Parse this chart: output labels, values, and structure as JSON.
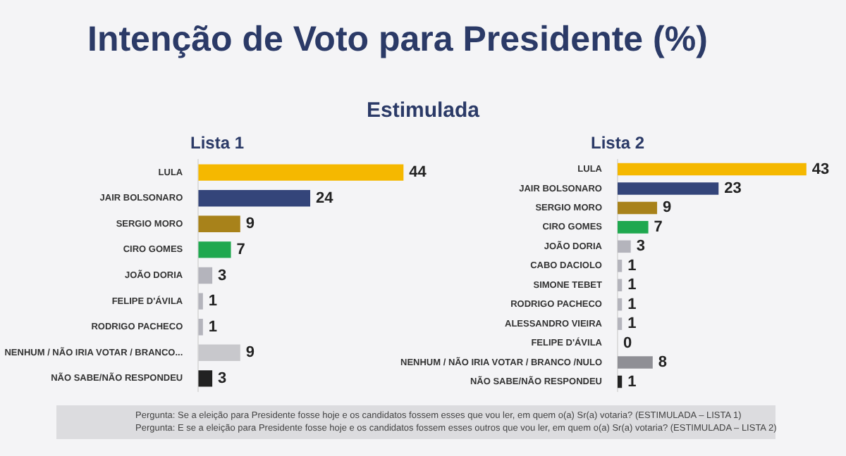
{
  "chart_data": [
    {
      "type": "other",
      "title": "Intenção de Voto para Presidente (%)",
      "subtitle": "Estimulada"
    },
    {
      "type": "bar",
      "orientation": "horizontal",
      "title": "Lista 1",
      "data_labels": true,
      "categories": [
        "LULA",
        "JAIR BOLSONARO",
        "SERGIO MORO",
        "CIRO GOMES",
        "JOÃO DORIA",
        "FELIPE D'ÁVILA",
        "RODRIGO PACHECO",
        "NENHUM / NÃO IRIA VOTAR / BRANCO...",
        "NÃO SABE/NÃO RESPONDEU"
      ],
      "values": [
        44,
        24,
        9,
        7,
        3,
        1,
        1,
        9,
        3
      ],
      "colors": [
        "#f5b800",
        "#34457a",
        "#a8821a",
        "#1fa84f",
        "#b4b4bc",
        "#b4b4bc",
        "#b4b4bc",
        "#c8c8cc",
        "#222222"
      ],
      "annotations": [
        "Pergunta:  Se a eleição para Presidente fosse hoje e os candidatos fossem esses que vou ler, em quem o(a) Sr(a) votaria? (ESTIMULADA – LISTA 1)"
      ]
    },
    {
      "type": "bar",
      "orientation": "horizontal",
      "title": "Lista 2",
      "data_labels": true,
      "categories": [
        "LULA",
        "JAIR BOLSONARO",
        "SERGIO MORO",
        "CIRO GOMES",
        "JOÃO DORIA",
        "CABO DACIOLO",
        "SIMONE TEBET",
        "RODRIGO PACHECO",
        "ALESSANDRO VIEIRA",
        "FELIPE D'ÁVILA",
        "NENHUM / NÃO IRIA VOTAR / BRANCO /NULO",
        "NÃO SABE/NÃO RESPONDEU"
      ],
      "values": [
        43,
        23,
        9,
        7,
        3,
        1,
        1,
        1,
        1,
        0,
        8,
        1
      ],
      "colors": [
        "#f5b800",
        "#34457a",
        "#a8821a",
        "#1fa84f",
        "#b4b4bc",
        "#b4b4bc",
        "#b4b4bc",
        "#b4b4bc",
        "#b4b4bc",
        "#b4b4bc",
        "#8f8f95",
        "#222222"
      ],
      "annotations": [
        "Pergunta:  E se a eleição para Presidente fosse hoje e os candidatos fossem esses outros que vou ler, em quem o(a) Sr(a) votaria?  (ESTIMULADA – LISTA 2)"
      ]
    }
  ]
}
